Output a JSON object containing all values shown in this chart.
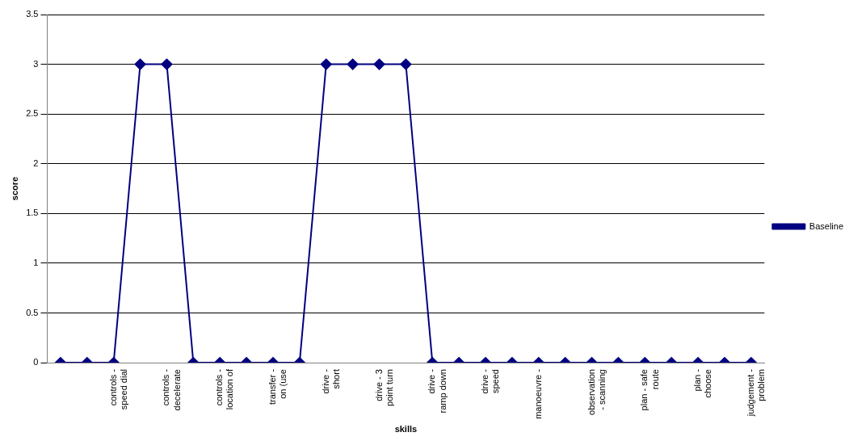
{
  "chart_data": {
    "type": "line",
    "xlabel": "skills",
    "ylabel": "score",
    "categories": [
      null,
      null,
      "controls - speed dial",
      null,
      "controls - decelerate",
      null,
      "controls - location of",
      null,
      "transfer - on (use",
      null,
      "drive - short",
      null,
      "drive - 3 point turn",
      null,
      "drive - ramp down",
      null,
      "drive - speed",
      null,
      "manoeuvre -",
      null,
      "observation - scanning",
      null,
      "plan - safe route",
      null,
      "plan - choose",
      null,
      "judgement - problem"
    ],
    "series": [
      {
        "name": "Baseline",
        "color": "#000080",
        "values": [
          0,
          0,
          0,
          3,
          3,
          0,
          0,
          0,
          0,
          0,
          3,
          3,
          3,
          3,
          0,
          0,
          0,
          0,
          0,
          0,
          0,
          0,
          0,
          0,
          0,
          0,
          0
        ]
      }
    ],
    "ylim": [
      0,
      3.5
    ],
    "yticks": [
      0,
      0.5,
      1,
      1.5,
      2,
      2.5,
      3,
      3.5
    ],
    "grid": "y",
    "legend": "right",
    "marker": "diamond",
    "line_style": "solid"
  }
}
